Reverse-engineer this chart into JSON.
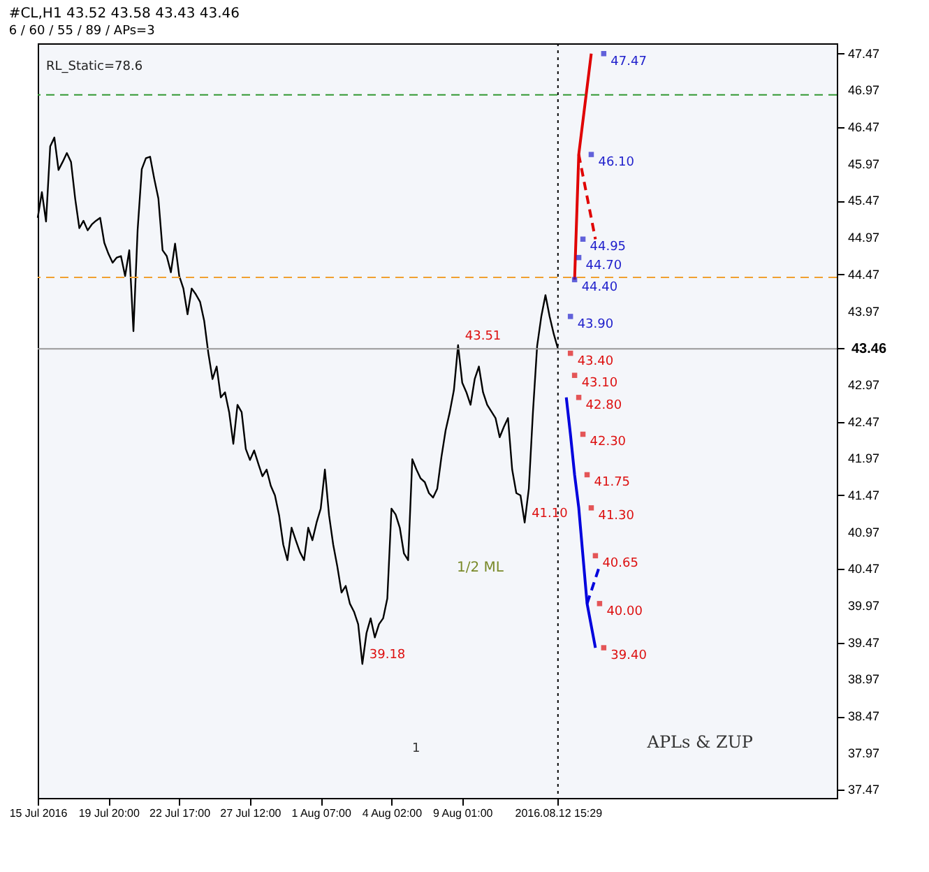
{
  "chart_data": {
    "type": "line",
    "title": "#CL,H1  43.52 43.58 43.43 43.46",
    "subtitle": "6 / 60 / 55 / 89 / APs=3",
    "categories": [
      "15 Jul 2016",
      null,
      null,
      null,
      null,
      null,
      null,
      null,
      null,
      null,
      null,
      null,
      null,
      null,
      null,
      null,
      null,
      "19 Jul 20:00",
      null,
      null,
      null,
      null,
      null,
      null,
      null,
      null,
      null,
      null,
      null,
      null,
      null,
      null,
      null,
      null,
      "22 Jul 17:00",
      null,
      null,
      null,
      null,
      null,
      null,
      null,
      null,
      null,
      null,
      null,
      null,
      null,
      null,
      null,
      null,
      "27 Jul 12:00",
      null,
      null,
      null,
      null,
      null,
      null,
      null,
      null,
      null,
      null,
      null,
      null,
      null,
      null,
      null,
      null,
      "1 Aug 07:00",
      null,
      null,
      null,
      null,
      null,
      null,
      null,
      null,
      null,
      null,
      null,
      null,
      null,
      null,
      null,
      null,
      "4 Aug 02:00",
      null,
      null,
      null,
      null,
      null,
      null,
      null,
      null,
      null,
      null,
      null,
      null,
      null,
      null,
      null,
      null,
      "9 Aug 01:00",
      null,
      null,
      null,
      null,
      null,
      null,
      null,
      null,
      null,
      null,
      null,
      null,
      null,
      null,
      null,
      null,
      null,
      null,
      null,
      null,
      null,
      null,
      "2016.08.12 15:29",
      null,
      null,
      null,
      null,
      null,
      null,
      null,
      null,
      null,
      null,
      null,
      null,
      null,
      null,
      null,
      null,
      null,
      null,
      null,
      null,
      null,
      null,
      null,
      null,
      null,
      null,
      null,
      null,
      null,
      null,
      null,
      null,
      null,
      null,
      null,
      null,
      null,
      null,
      null,
      null,
      null,
      null,
      null,
      null,
      null,
      null,
      null,
      null,
      null,
      null,
      null,
      null,
      null,
      null,
      null,
      null,
      null,
      null,
      null,
      null,
      null,
      null,
      null,
      null,
      null,
      null,
      null
    ],
    "ylim": [
      37.36,
      47.61
    ],
    "yticks": [
      37.47,
      37.97,
      38.47,
      38.97,
      39.47,
      39.97,
      40.47,
      40.97,
      41.47,
      41.97,
      42.47,
      42.97,
      {
        "value": 43.47,
        "label": null
      },
      43.97,
      44.47,
      44.97,
      45.47,
      45.97,
      46.47,
      46.97,
      47.47
    ],
    "series": [
      {
        "color": "#000000",
        "values": [
          45.24,
          45.59,
          45.19,
          46.21,
          46.33,
          45.89,
          46.0,
          46.12,
          46.0,
          45.5,
          45.1,
          45.2,
          45.07,
          45.15,
          45.2,
          45.24,
          44.9,
          44.75,
          44.63,
          44.7,
          44.72,
          44.45,
          44.8,
          43.7,
          45.07,
          45.9,
          46.05,
          46.07,
          45.77,
          45.5,
          44.8,
          44.72,
          44.5,
          44.89,
          44.45,
          44.28,
          43.93,
          44.28,
          44.2,
          44.1,
          43.84,
          43.4,
          43.05,
          43.22,
          42.8,
          42.87,
          42.6,
          42.17,
          42.7,
          42.6,
          42.1,
          41.95,
          42.08,
          41.9,
          41.73,
          41.82,
          41.6,
          41.47,
          41.2,
          40.8,
          40.59,
          41.03,
          40.86,
          40.7,
          40.59,
          41.03,
          40.86,
          41.1,
          41.29,
          41.82,
          41.2,
          40.8,
          40.5,
          40.15,
          40.24,
          40.0,
          39.89,
          39.72,
          39.18,
          39.6,
          39.8,
          39.54,
          39.72,
          39.8,
          40.07,
          41.29,
          41.21,
          41.03,
          40.68,
          40.59,
          41.96,
          41.82,
          41.7,
          41.65,
          41.5,
          41.44,
          41.56,
          41.99,
          42.35,
          42.6,
          42.9,
          43.51,
          43.0,
          42.87,
          42.7,
          43.05,
          43.22,
          42.87,
          42.7,
          42.61,
          42.52,
          42.26,
          42.4,
          42.52,
          41.82,
          41.5,
          41.47,
          41.1,
          41.56,
          42.61,
          43.5,
          43.9,
          44.19,
          43.9,
          43.66,
          43.46,
          null,
          null,
          null,
          null,
          null,
          null,
          null,
          null,
          null,
          null,
          null,
          null,
          null,
          null,
          null,
          null,
          null,
          null,
          null,
          null,
          null,
          null,
          null,
          null,
          null,
          null,
          null,
          null,
          null,
          null,
          null,
          null,
          null,
          null,
          null,
          null,
          null,
          null,
          null,
          null,
          null,
          null,
          null,
          null,
          null,
          null,
          null,
          null,
          null,
          null,
          null,
          null,
          null,
          null,
          null,
          null,
          null,
          null,
          null,
          null,
          null,
          null,
          null,
          null,
          null,
          null,
          null
        ],
        "value_labels": [
          null,
          null,
          null,
          null,
          null,
          null,
          null,
          null,
          null,
          null,
          null,
          null,
          null,
          null,
          null,
          null,
          null,
          null,
          null,
          null,
          null,
          null,
          null,
          null,
          null,
          null,
          null,
          null,
          null,
          null,
          null,
          null,
          null,
          null,
          null,
          null,
          null,
          null,
          null,
          null,
          null,
          null,
          null,
          null,
          null,
          null,
          null,
          null,
          null,
          null,
          null,
          null,
          null,
          null,
          null,
          null,
          null,
          null,
          null,
          null,
          null,
          null,
          null,
          null,
          null,
          null,
          null,
          null,
          null,
          null,
          null,
          null,
          null,
          null,
          null,
          null,
          null,
          null,
          "39.18",
          null,
          null,
          null,
          null,
          null,
          null,
          null,
          null,
          null,
          null,
          null,
          null,
          null,
          null,
          null,
          null,
          null,
          null,
          null,
          null,
          null,
          null,
          "43.51",
          null,
          null,
          null,
          null,
          null,
          null,
          null,
          null,
          null,
          null,
          null,
          null,
          null,
          null,
          null,
          "41.10",
          null,
          null,
          null,
          null,
          null,
          null,
          null,
          null,
          null,
          null,
          null,
          null,
          null,
          null,
          null,
          null,
          null,
          null,
          null,
          null,
          null,
          null,
          null,
          null,
          null,
          null,
          null,
          null,
          null,
          null,
          null,
          null,
          null,
          null,
          null,
          null,
          null,
          null,
          null,
          null,
          null,
          null,
          null,
          null,
          null,
          null,
          null,
          null,
          null,
          null,
          null,
          null,
          null,
          null,
          null,
          null,
          null,
          null,
          null,
          null,
          null,
          null,
          null,
          null,
          null,
          null,
          null,
          null,
          null,
          null,
          null,
          null,
          null,
          null,
          null
        ]
      },
      {
        "color": "#e00000",
        "values": [
          null,
          null,
          null,
          null,
          null,
          null,
          null,
          null,
          null,
          null,
          null,
          null,
          null,
          null,
          null,
          null,
          null,
          null,
          null,
          null,
          null,
          null,
          null,
          null,
          null,
          null,
          null,
          null,
          null,
          null,
          null,
          null,
          null,
          null,
          null,
          null,
          null,
          null,
          null,
          null,
          null,
          null,
          null,
          null,
          null,
          null,
          null,
          null,
          null,
          null,
          null,
          null,
          null,
          null,
          null,
          null,
          null,
          null,
          null,
          null,
          null,
          null,
          null,
          null,
          null,
          null,
          null,
          null,
          null,
          null,
          null,
          null,
          null,
          null,
          null,
          null,
          null,
          null,
          null,
          null,
          null,
          null,
          null,
          null,
          null,
          null,
          null,
          null,
          null,
          null,
          null,
          null,
          null,
          null,
          null,
          null,
          null,
          null,
          null,
          null,
          null,
          null,
          null,
          null,
          null,
          null,
          null,
          null,
          null,
          null,
          null,
          null,
          null,
          null,
          null,
          null,
          null,
          null,
          null,
          null,
          null,
          null,
          null,
          null,
          null,
          null,
          null,
          null,
          null,
          44.4,
          46.1,
          null,
          null,
          47.47,
          null,
          null,
          null,
          null,
          null,
          null,
          null,
          null,
          null,
          null,
          null,
          null,
          null,
          null,
          null,
          null,
          null,
          null,
          null,
          null,
          null,
          null,
          null,
          null,
          null,
          null,
          null,
          null,
          null,
          null,
          null,
          null,
          null,
          null,
          null,
          null,
          null,
          null,
          null,
          null,
          null,
          null,
          null,
          null,
          null,
          null,
          null,
          null,
          null,
          null,
          null,
          null,
          null,
          null,
          null,
          null,
          null,
          null,
          null
        ]
      },
      {
        "color": "#e00000",
        "line_style": "dashed",
        "values": [
          null,
          null,
          null,
          null,
          null,
          null,
          null,
          null,
          null,
          null,
          null,
          null,
          null,
          null,
          null,
          null,
          null,
          null,
          null,
          null,
          null,
          null,
          null,
          null,
          null,
          null,
          null,
          null,
          null,
          null,
          null,
          null,
          null,
          null,
          null,
          null,
          null,
          null,
          null,
          null,
          null,
          null,
          null,
          null,
          null,
          null,
          null,
          null,
          null,
          null,
          null,
          null,
          null,
          null,
          null,
          null,
          null,
          null,
          null,
          null,
          null,
          null,
          null,
          null,
          null,
          null,
          null,
          null,
          null,
          null,
          null,
          null,
          null,
          null,
          null,
          null,
          null,
          null,
          null,
          null,
          null,
          null,
          null,
          null,
          null,
          null,
          null,
          null,
          null,
          null,
          null,
          null,
          null,
          null,
          null,
          null,
          null,
          null,
          null,
          null,
          null,
          null,
          null,
          null,
          null,
          null,
          null,
          null,
          null,
          null,
          null,
          null,
          null,
          null,
          null,
          null,
          null,
          null,
          null,
          null,
          null,
          null,
          null,
          null,
          null,
          null,
          null,
          null,
          null,
          null,
          46.1,
          null,
          null,
          null,
          44.95,
          null,
          null,
          null,
          null,
          null,
          null,
          null,
          null,
          null,
          null,
          null,
          null,
          null,
          null,
          null,
          null,
          null,
          null,
          null,
          null,
          null,
          null,
          null,
          null,
          null,
          null,
          null,
          null,
          null,
          null,
          null,
          null,
          null,
          null,
          null,
          null,
          null,
          null,
          null,
          null,
          null,
          null,
          null,
          null,
          null,
          null,
          null,
          null,
          null,
          null,
          null,
          null,
          null,
          null,
          null,
          null,
          null,
          null
        ]
      },
      {
        "color": "#0000dd",
        "values": [
          null,
          null,
          null,
          null,
          null,
          null,
          null,
          null,
          null,
          null,
          null,
          null,
          null,
          null,
          null,
          null,
          null,
          null,
          null,
          null,
          null,
          null,
          null,
          null,
          null,
          null,
          null,
          null,
          null,
          null,
          null,
          null,
          null,
          null,
          null,
          null,
          null,
          null,
          null,
          null,
          null,
          null,
          null,
          null,
          null,
          null,
          null,
          null,
          null,
          null,
          null,
          null,
          null,
          null,
          null,
          null,
          null,
          null,
          null,
          null,
          null,
          null,
          null,
          null,
          null,
          null,
          null,
          null,
          null,
          null,
          null,
          null,
          null,
          null,
          null,
          null,
          null,
          null,
          null,
          null,
          null,
          null,
          null,
          null,
          null,
          null,
          null,
          null,
          null,
          null,
          null,
          null,
          null,
          null,
          null,
          null,
          null,
          null,
          null,
          null,
          null,
          null,
          null,
          null,
          null,
          null,
          null,
          null,
          null,
          null,
          null,
          null,
          null,
          null,
          null,
          null,
          null,
          null,
          null,
          null,
          null,
          null,
          null,
          null,
          null,
          null,
          null,
          42.8,
          42.3,
          41.75,
          41.3,
          40.65,
          40.0,
          null,
          39.4,
          null,
          null,
          null,
          null,
          null,
          null,
          null,
          null,
          null,
          null,
          null,
          null,
          null,
          null,
          null,
          null,
          null,
          null,
          null,
          null,
          null,
          null,
          null,
          null,
          null,
          null,
          null,
          null,
          null,
          null,
          null,
          null,
          null,
          null,
          null,
          null,
          null,
          null,
          null,
          null,
          null,
          null,
          null,
          null,
          null,
          null,
          null,
          null,
          null,
          null,
          null,
          null,
          null,
          null,
          null,
          null,
          null,
          null
        ]
      },
      {
        "color": "#0000dd",
        "line_style": "dashed",
        "values": [
          null,
          null,
          null,
          null,
          null,
          null,
          null,
          null,
          null,
          null,
          null,
          null,
          null,
          null,
          null,
          null,
          null,
          null,
          null,
          null,
          null,
          null,
          null,
          null,
          null,
          null,
          null,
          null,
          null,
          null,
          null,
          null,
          null,
          null,
          null,
          null,
          null,
          null,
          null,
          null,
          null,
          null,
          null,
          null,
          null,
          null,
          null,
          null,
          null,
          null,
          null,
          null,
          null,
          null,
          null,
          null,
          null,
          null,
          null,
          null,
          null,
          null,
          null,
          null,
          null,
          null,
          null,
          null,
          null,
          null,
          null,
          null,
          null,
          null,
          null,
          null,
          null,
          null,
          null,
          null,
          null,
          null,
          null,
          null,
          null,
          null,
          null,
          null,
          null,
          null,
          null,
          null,
          null,
          null,
          null,
          null,
          null,
          null,
          null,
          null,
          null,
          null,
          null,
          null,
          null,
          null,
          null,
          null,
          null,
          null,
          null,
          null,
          null,
          null,
          null,
          null,
          null,
          null,
          null,
          null,
          null,
          null,
          null,
          null,
          null,
          null,
          null,
          null,
          null,
          null,
          null,
          null,
          40.0,
          null,
          null,
          40.51,
          null,
          null,
          null,
          null,
          null,
          null,
          null,
          null,
          null,
          null,
          null,
          null,
          null,
          null,
          null,
          null,
          null,
          null,
          null,
          null,
          null,
          null,
          null,
          null,
          null,
          null,
          null,
          null,
          null,
          null,
          null,
          null,
          null,
          null,
          null,
          null,
          null,
          null,
          null,
          null,
          null,
          null,
          null,
          null,
          null,
          null,
          null,
          null,
          null,
          null,
          null,
          null,
          null,
          null,
          null,
          null,
          null
        ]
      },
      {
        "type": "scatter",
        "marker": "square",
        "color": "#2222cc",
        "values": [
          null,
          null,
          null,
          null,
          null,
          null,
          null,
          null,
          null,
          null,
          null,
          null,
          null,
          null,
          null,
          null,
          null,
          null,
          null,
          null,
          null,
          null,
          null,
          null,
          null,
          null,
          null,
          null,
          null,
          null,
          null,
          null,
          null,
          null,
          null,
          null,
          null,
          null,
          null,
          null,
          null,
          null,
          null,
          null,
          null,
          null,
          null,
          null,
          null,
          null,
          null,
          null,
          null,
          null,
          null,
          null,
          null,
          null,
          null,
          null,
          null,
          null,
          null,
          null,
          null,
          null,
          null,
          null,
          null,
          null,
          null,
          null,
          null,
          null,
          null,
          null,
          null,
          null,
          null,
          null,
          null,
          null,
          null,
          null,
          null,
          null,
          null,
          null,
          null,
          null,
          null,
          null,
          null,
          null,
          null,
          null,
          null,
          null,
          null,
          null,
          null,
          null,
          null,
          null,
          null,
          null,
          null,
          null,
          null,
          null,
          null,
          null,
          null,
          null,
          null,
          null,
          null,
          null,
          null,
          null,
          null,
          null,
          null,
          null,
          null,
          null,
          null,
          null,
          43.9,
          44.4,
          44.7,
          44.95,
          null,
          46.1,
          null,
          null,
          47.47,
          null,
          null,
          null,
          null,
          null,
          null,
          null,
          null,
          null,
          null,
          null,
          null,
          null,
          null,
          null,
          null,
          null,
          null,
          null,
          null,
          null,
          null,
          null,
          null,
          null,
          null,
          null,
          null,
          null,
          null,
          null,
          null,
          null,
          null,
          null,
          null,
          null,
          null,
          null,
          null,
          null,
          null,
          null,
          null,
          null,
          null,
          null,
          null,
          null,
          null,
          null,
          null,
          null,
          null,
          null,
          null
        ],
        "value_labels": [
          null,
          null,
          null,
          null,
          null,
          null,
          null,
          null,
          null,
          null,
          null,
          null,
          null,
          null,
          null,
          null,
          null,
          null,
          null,
          null,
          null,
          null,
          null,
          null,
          null,
          null,
          null,
          null,
          null,
          null,
          null,
          null,
          null,
          null,
          null,
          null,
          null,
          null,
          null,
          null,
          null,
          null,
          null,
          null,
          null,
          null,
          null,
          null,
          null,
          null,
          null,
          null,
          null,
          null,
          null,
          null,
          null,
          null,
          null,
          null,
          null,
          null,
          null,
          null,
          null,
          null,
          null,
          null,
          null,
          null,
          null,
          null,
          null,
          null,
          null,
          null,
          null,
          null,
          null,
          null,
          null,
          null,
          null,
          null,
          null,
          null,
          null,
          null,
          null,
          null,
          null,
          null,
          null,
          null,
          null,
          null,
          null,
          null,
          null,
          null,
          null,
          null,
          null,
          null,
          null,
          null,
          null,
          null,
          null,
          null,
          null,
          null,
          null,
          null,
          null,
          null,
          null,
          null,
          null,
          null,
          null,
          null,
          null,
          null,
          null,
          null,
          null,
          null,
          "43.90",
          "44.40",
          "44.70",
          "44.95",
          null,
          "46.10",
          null,
          null,
          "47.47",
          null,
          null,
          null,
          null,
          null,
          null,
          null,
          null,
          null,
          null,
          null,
          null,
          null,
          null,
          null,
          null,
          null,
          null,
          null,
          null,
          null,
          null,
          null,
          null,
          null,
          null,
          null,
          null,
          null,
          null,
          null,
          null,
          null,
          null,
          null,
          null,
          null,
          null,
          null,
          null,
          null,
          null,
          null,
          null,
          null,
          null,
          null,
          null,
          null,
          null,
          null,
          null,
          null,
          null,
          null,
          null
        ]
      },
      {
        "type": "scatter",
        "marker": "square",
        "color": "#dd1111",
        "values": [
          null,
          null,
          null,
          null,
          null,
          null,
          null,
          null,
          null,
          null,
          null,
          null,
          null,
          null,
          null,
          null,
          null,
          null,
          null,
          null,
          null,
          null,
          null,
          null,
          null,
          null,
          null,
          null,
          null,
          null,
          null,
          null,
          null,
          null,
          null,
          null,
          null,
          null,
          null,
          null,
          null,
          null,
          null,
          null,
          null,
          null,
          null,
          null,
          null,
          null,
          null,
          null,
          null,
          null,
          null,
          null,
          null,
          null,
          null,
          null,
          null,
          null,
          null,
          null,
          null,
          null,
          null,
          null,
          null,
          null,
          null,
          null,
          null,
          null,
          null,
          null,
          null,
          null,
          null,
          null,
          null,
          null,
          null,
          null,
          null,
          null,
          null,
          null,
          null,
          null,
          null,
          null,
          null,
          null,
          null,
          null,
          null,
          null,
          null,
          null,
          null,
          null,
          null,
          null,
          null,
          null,
          null,
          null,
          null,
          null,
          null,
          null,
          null,
          null,
          null,
          null,
          null,
          null,
          null,
          null,
          null,
          null,
          null,
          null,
          null,
          null,
          null,
          null,
          43.4,
          43.1,
          42.8,
          42.3,
          41.75,
          41.3,
          40.65,
          40.0,
          39.4,
          null,
          null,
          null,
          null,
          null,
          null,
          null,
          null,
          null,
          null,
          null,
          null,
          null,
          null,
          null,
          null,
          null,
          null,
          null,
          null,
          null,
          null,
          null,
          null,
          null,
          null,
          null,
          null,
          null,
          null,
          null,
          null,
          null,
          null,
          null,
          null,
          null,
          null,
          null,
          null,
          null,
          null,
          null,
          null,
          null,
          null,
          null,
          null,
          null,
          null,
          null,
          null,
          null,
          null,
          null,
          null
        ],
        "value_labels": [
          null,
          null,
          null,
          null,
          null,
          null,
          null,
          null,
          null,
          null,
          null,
          null,
          null,
          null,
          null,
          null,
          null,
          null,
          null,
          null,
          null,
          null,
          null,
          null,
          null,
          null,
          null,
          null,
          null,
          null,
          null,
          null,
          null,
          null,
          null,
          null,
          null,
          null,
          null,
          null,
          null,
          null,
          null,
          null,
          null,
          null,
          null,
          null,
          null,
          null,
          null,
          null,
          null,
          null,
          null,
          null,
          null,
          null,
          null,
          null,
          null,
          null,
          null,
          null,
          null,
          null,
          null,
          null,
          null,
          null,
          null,
          null,
          null,
          null,
          null,
          null,
          null,
          null,
          null,
          null,
          null,
          null,
          null,
          null,
          null,
          null,
          null,
          null,
          null,
          null,
          null,
          null,
          null,
          null,
          null,
          null,
          null,
          null,
          null,
          null,
          null,
          null,
          null,
          null,
          null,
          null,
          null,
          null,
          null,
          null,
          null,
          null,
          null,
          null,
          null,
          null,
          null,
          null,
          null,
          null,
          null,
          null,
          null,
          null,
          null,
          null,
          null,
          null,
          "43.40",
          "43.10",
          "42.80",
          "42.30",
          "41.75",
          "41.30",
          "40.65",
          "40.00",
          "39.40",
          null,
          null,
          null,
          null,
          null,
          null,
          null,
          null,
          null,
          null,
          null,
          null,
          null,
          null,
          null,
          null,
          null,
          null,
          null,
          null,
          null,
          null,
          null,
          null,
          null,
          null,
          null,
          null,
          null,
          null,
          null,
          null,
          null,
          null,
          null,
          null,
          null,
          null,
          null,
          null,
          null,
          null,
          null,
          null,
          null,
          null,
          null,
          null,
          null,
          null,
          null,
          null,
          null,
          null,
          null,
          null
        ]
      }
    ],
    "ref_lines": [
      {
        "axis": "y",
        "value": 43.46,
        "label": "43.46",
        "color": "#999999",
        "line_style": "solid"
      },
      {
        "axis": "x",
        "value": "2016.08.12 15:29",
        "color": "#000000",
        "line_style": "dotted"
      },
      {
        "axis": "y",
        "value": 46.91,
        "color": "#339933",
        "line_style": "dashed"
      },
      {
        "axis": "y",
        "value": 44.43,
        "color": "#f0a030",
        "line_style": "dashed"
      }
    ],
    "annotations": [
      "RL_Static=78.6",
      "APLs & ZUP",
      "1/2 ML",
      "1"
    ],
    "grid": false
  }
}
